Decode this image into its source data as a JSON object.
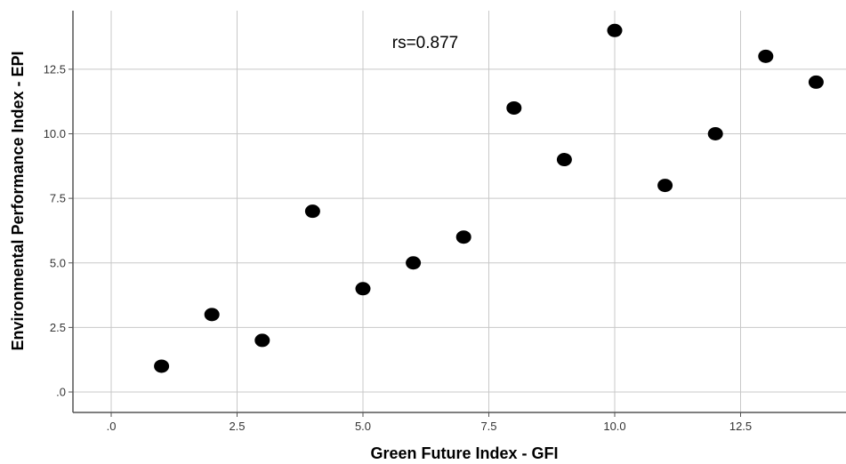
{
  "chart_data": {
    "type": "scatter",
    "title": "",
    "xlabel": "Green Future Index - GFI",
    "ylabel": "Environmental Performance Index - EPI",
    "xlim": [
      -0.75,
      14.6
    ],
    "ylim": [
      -0.75,
      14.6
    ],
    "x_ticks": [
      0,
      2.5,
      5,
      7.5,
      10,
      12.5
    ],
    "x_tick_labels": [
      ".0",
      "2.5",
      "5.0",
      "7.5",
      "10.0",
      "12.5"
    ],
    "y_ticks": [
      0,
      2.5,
      5,
      7.5,
      10,
      12.5
    ],
    "y_tick_labels": [
      ".0",
      "2.5",
      "5.0",
      "7.5",
      "10.0",
      "12.5"
    ],
    "grid": true,
    "annotation": "rs=0.877",
    "marker_color": "#000000",
    "grid_color": "#c8c8c8",
    "points": [
      {
        "x": 1,
        "y": 1
      },
      {
        "x": 2,
        "y": 3
      },
      {
        "x": 3,
        "y": 2
      },
      {
        "x": 4,
        "y": 7
      },
      {
        "x": 5,
        "y": 4
      },
      {
        "x": 6,
        "y": 5
      },
      {
        "x": 7,
        "y": 6
      },
      {
        "x": 8,
        "y": 11
      },
      {
        "x": 9,
        "y": 9
      },
      {
        "x": 10,
        "y": 14
      },
      {
        "x": 11,
        "y": 8
      },
      {
        "x": 12,
        "y": 10
      },
      {
        "x": 13,
        "y": 13
      },
      {
        "x": 14,
        "y": 12
      }
    ]
  }
}
